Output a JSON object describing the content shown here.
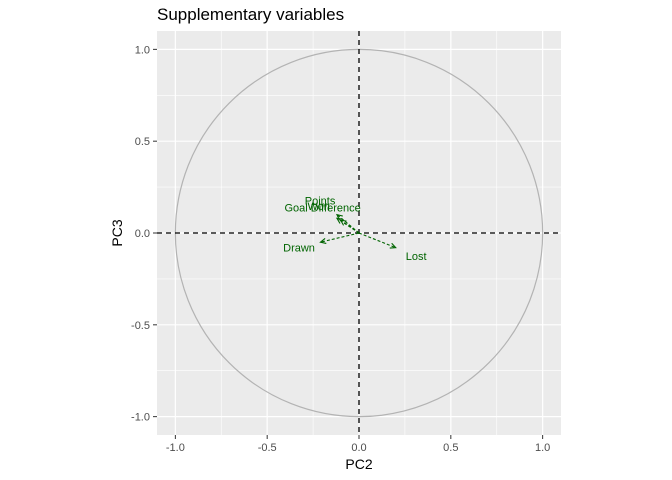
{
  "chart_data": {
    "type": "scatter",
    "title": "Supplementary variables",
    "xlabel": "PC2",
    "ylabel": "PC3",
    "xlim": [
      -1.1,
      1.1
    ],
    "ylim": [
      -1.1,
      1.1
    ],
    "x_ticks": [
      -1.0,
      -0.5,
      0.0,
      0.5,
      1.0
    ],
    "y_ticks": [
      -1.0,
      -0.5,
      0.0,
      0.5,
      1.0
    ],
    "x_tick_labels": [
      "-1.0",
      "-0.5",
      "0.0",
      "0.5",
      "1.0"
    ],
    "y_tick_labels": [
      "-1.0",
      "-0.5",
      "0.0",
      "0.5",
      "1.0"
    ],
    "grid": true,
    "reference_circle_radius": 1.0,
    "reference_lines": {
      "x": 0,
      "y": 0
    },
    "arrow_color": "#006400",
    "panel_color": "#ebebeb",
    "circle_color": "#b3b3b3",
    "variables": [
      {
        "name": "Won",
        "x": -0.12,
        "y": 0.08
      },
      {
        "name": "Points",
        "x": -0.12,
        "y": 0.1
      },
      {
        "name": "Goal Difference",
        "x": -0.1,
        "y": 0.07
      },
      {
        "name": "Drawn",
        "x": -0.21,
        "y": -0.05
      },
      {
        "name": "Lost",
        "x": 0.2,
        "y": -0.08
      }
    ]
  }
}
